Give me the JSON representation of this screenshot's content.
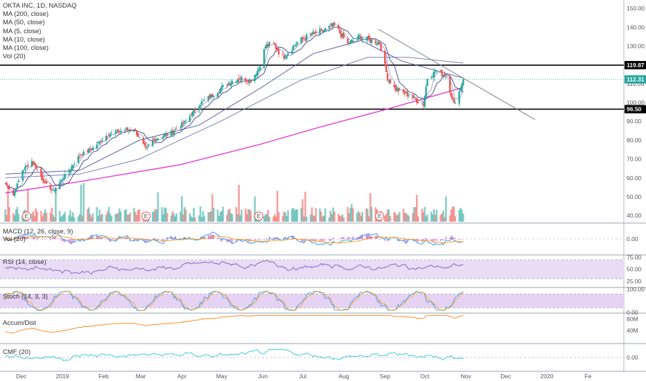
{
  "chart_data": {
    "type": "candlestick",
    "title": "OKTA INC, 1D, NASDAQ",
    "indicators": [
      "MA (200, close)",
      "MA (50, close)",
      "MA (5, close)",
      "MA (10, close)",
      "MA (100, close)",
      "Vol (20)"
    ],
    "price_axis": {
      "ylim": [
        36,
        153
      ],
      "ticks": [
        40,
        50,
        60,
        70,
        80,
        90,
        100,
        110,
        120,
        130,
        140,
        150
      ]
    },
    "x_axis": {
      "ticks": [
        "Dec",
        "2019",
        "Feb",
        "Mar",
        "Apr",
        "May",
        "Jun",
        "Jul",
        "Aug",
        "Sep",
        "Oct",
        "Nov",
        "Dec",
        "2020",
        "Fe"
      ]
    },
    "last_price": 112.31,
    "horizontal_lines": [
      {
        "label": "119.87",
        "value": 119.87,
        "color": "#000000"
      },
      {
        "label": "96.50",
        "value": 96.5,
        "color": "#000000"
      }
    ],
    "trendline": {
      "from": {
        "date": "2019-08-28",
        "price": 139
      },
      "to": {
        "date": "2019-12-24",
        "price": 91
      }
    },
    "earnings_markers": [
      "2018-12-06",
      "2019-03-06",
      "2019-05-30",
      "2019-08-29"
    ],
    "earnings_label": "E",
    "colors": {
      "up": "#26a69a",
      "down": "#ef5350",
      "ma200": "#e53dd0",
      "ma100": "#7b7fb5",
      "ma50": "#5b5ea6",
      "ma5": "#9aa0d8",
      "ma10": "#3a3f86",
      "last_price": "#26a69a"
    },
    "price_waypoints": [
      {
        "date": "2018-11-20",
        "close": 57
      },
      {
        "date": "2018-11-26",
        "close": 51
      },
      {
        "date": "2018-12-03",
        "close": 64
      },
      {
        "date": "2018-12-10",
        "close": 69
      },
      {
        "date": "2018-12-20",
        "close": 57
      },
      {
        "date": "2018-12-26",
        "close": 53
      },
      {
        "date": "2019-01-07",
        "close": 64
      },
      {
        "date": "2019-01-15",
        "close": 72
      },
      {
        "date": "2019-01-25",
        "close": 76
      },
      {
        "date": "2019-02-05",
        "close": 83
      },
      {
        "date": "2019-02-15",
        "close": 85
      },
      {
        "date": "2019-02-25",
        "close": 86
      },
      {
        "date": "2019-03-06",
        "close": 75
      },
      {
        "date": "2019-03-11",
        "close": 80
      },
      {
        "date": "2019-03-25",
        "close": 84
      },
      {
        "date": "2019-04-05",
        "close": 90
      },
      {
        "date": "2019-04-15",
        "close": 99
      },
      {
        "date": "2019-04-25",
        "close": 104
      },
      {
        "date": "2019-05-06",
        "close": 110
      },
      {
        "date": "2019-05-15",
        "close": 113
      },
      {
        "date": "2019-05-24",
        "close": 112
      },
      {
        "date": "2019-05-30",
        "close": 118
      },
      {
        "date": "2019-06-04",
        "close": 130
      },
      {
        "date": "2019-06-10",
        "close": 131
      },
      {
        "date": "2019-06-17",
        "close": 124
      },
      {
        "date": "2019-06-28",
        "close": 132
      },
      {
        "date": "2019-07-08",
        "close": 136
      },
      {
        "date": "2019-07-17",
        "close": 138
      },
      {
        "date": "2019-07-26",
        "close": 141
      },
      {
        "date": "2019-08-05",
        "close": 131
      },
      {
        "date": "2019-08-14",
        "close": 135
      },
      {
        "date": "2019-08-22",
        "close": 133
      },
      {
        "date": "2019-08-29",
        "close": 132
      },
      {
        "date": "2019-09-04",
        "close": 113
      },
      {
        "date": "2019-09-10",
        "close": 107
      },
      {
        "date": "2019-09-20",
        "close": 104
      },
      {
        "date": "2019-09-26",
        "close": 101
      },
      {
        "date": "2019-10-01",
        "close": 99
      },
      {
        "date": "2019-10-04",
        "close": 113
      },
      {
        "date": "2019-10-11",
        "close": 117
      },
      {
        "date": "2019-10-18",
        "close": 114
      },
      {
        "date": "2019-10-22",
        "close": 104
      },
      {
        "date": "2019-10-24",
        "close": 99
      },
      {
        "date": "2019-10-28",
        "close": 106
      },
      {
        "date": "2019-10-31",
        "close": 112.31
      }
    ],
    "ma_waypoints": {
      "ma200": [
        {
          "date": "2018-11-20",
          "value": 52
        },
        {
          "date": "2019-01-15",
          "value": 58
        },
        {
          "date": "2019-04-01",
          "value": 67
        },
        {
          "date": "2019-06-01",
          "value": 78
        },
        {
          "date": "2019-07-15",
          "value": 87
        },
        {
          "date": "2019-09-01",
          "value": 96
        },
        {
          "date": "2019-10-31",
          "value": 108
        }
      ],
      "ma100": [
        {
          "date": "2018-11-20",
          "value": 60
        },
        {
          "date": "2019-01-15",
          "value": 62
        },
        {
          "date": "2019-03-01",
          "value": 70
        },
        {
          "date": "2019-05-01",
          "value": 90
        },
        {
          "date": "2019-07-01",
          "value": 112
        },
        {
          "date": "2019-08-20",
          "value": 124
        },
        {
          "date": "2019-09-20",
          "value": 124
        },
        {
          "date": "2019-10-31",
          "value": 121
        }
      ],
      "ma50": [
        {
          "date": "2018-11-20",
          "value": 62
        },
        {
          "date": "2019-01-15",
          "value": 64
        },
        {
          "date": "2019-03-01",
          "value": 80
        },
        {
          "date": "2019-04-15",
          "value": 88
        },
        {
          "date": "2019-06-01",
          "value": 108
        },
        {
          "date": "2019-07-10",
          "value": 126
        },
        {
          "date": "2019-08-15",
          "value": 133
        },
        {
          "date": "2019-09-15",
          "value": 122
        },
        {
          "date": "2019-10-31",
          "value": 113
        }
      ]
    },
    "volume": {
      "label": "Vol (20)"
    },
    "panes": [
      {
        "label": "MACD (12, 26, close, 9)",
        "ticks": [
          "0.00"
        ]
      },
      {
        "label": "Vol (20)",
        "ticks": []
      },
      {
        "label": "RSI (14, close)",
        "ticks": [
          "75.00",
          "50.00",
          "25.00"
        ]
      },
      {
        "label": "Stoch (14, 3, 3)",
        "ticks": [
          "100.00",
          "0.00"
        ]
      },
      {
        "label": "Accum/Dist",
        "ticks": [
          "80M",
          "40M"
        ]
      },
      {
        "label": "CMF (20)",
        "ticks": [
          "0.00"
        ]
      }
    ]
  }
}
